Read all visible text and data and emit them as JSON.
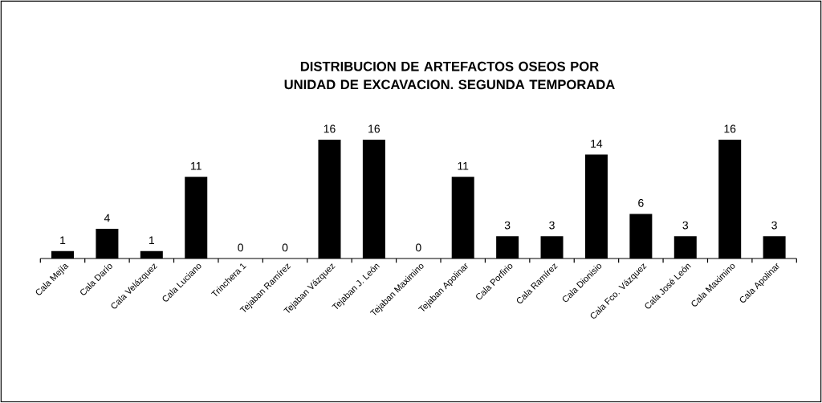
{
  "chart_data": {
    "type": "bar",
    "title": "DISTRIBUCION DE ARTEFACTOS OSEOS POR UNIDAD DE EXCAVACION. SEGUNDA TEMPORADA",
    "categories": [
      "Cala Mejía",
      "Cala Darío",
      "Cala Velázquez",
      "Cala Luciano",
      "Trinchera 1",
      "Tejaban Ramírez",
      "Tejaban Vázquez",
      "Tejaban J. León",
      "Tejaban Maximino",
      "Tejaban Apolinar",
      "Cala Porfirio",
      "Cala Ramírez",
      "Cala Dionisio",
      "Cala Fco. Vázquez",
      "Cala José León",
      "Cala Maximino",
      "Cala Apolinar"
    ],
    "values": [
      1,
      4,
      1,
      11,
      0,
      0,
      16,
      16,
      0,
      11,
      3,
      3,
      14,
      6,
      3,
      16,
      3
    ],
    "color": "#000000",
    "data_labels": true
  }
}
